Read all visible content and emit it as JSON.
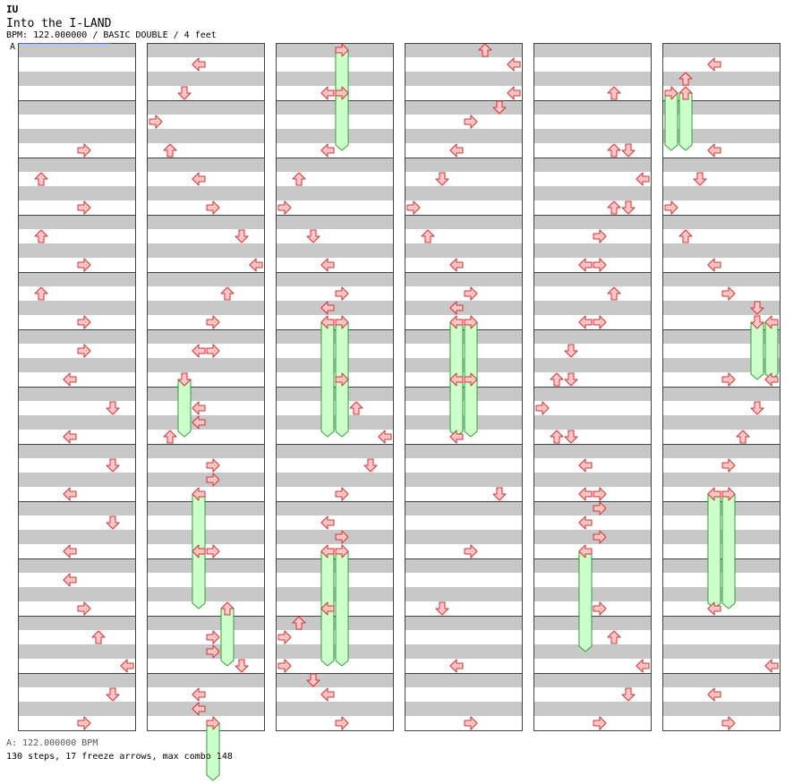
{
  "header": {
    "artist": "IU",
    "title": "Into the I-LAND",
    "meta": "BPM: 122.000000 / BASIC DOUBLE / 4 feet",
    "marker": "A"
  },
  "footer": {
    "bpm": "A: 122.000000 BPM",
    "stats": "130 steps, 17 freeze arrows, max combo 148"
  },
  "colors": {
    "arrow_fill": "#ffc8c8",
    "arrow_stroke": "#d03030",
    "freeze_fill": "#ccffcc",
    "freeze_stroke": "#30a030",
    "band": "#c8c8c8",
    "border": "#444444",
    "bpm_marker": "#4060ff"
  },
  "chart_data": {
    "type": "step-chart",
    "columns": 6,
    "measures_per_column": 12,
    "rows_per_measure": 4,
    "lanes_per_column": 8,
    "freeze_count": 17,
    "notes": [
      {
        "c": 0,
        "r": 7,
        "l": 4
      },
      {
        "c": 0,
        "r": 9,
        "l": 1
      },
      {
        "c": 0,
        "r": 11,
        "l": 4
      },
      {
        "c": 0,
        "r": 13,
        "l": 1
      },
      {
        "c": 0,
        "r": 15,
        "l": 4
      },
      {
        "c": 0,
        "r": 17,
        "l": 1
      },
      {
        "c": 0,
        "r": 19,
        "l": 4
      },
      {
        "c": 0,
        "r": 21,
        "l": 4
      },
      {
        "c": 0,
        "r": 23,
        "l": 3
      },
      {
        "c": 0,
        "r": 25,
        "l": 6
      },
      {
        "c": 0,
        "r": 27,
        "l": 3
      },
      {
        "c": 0,
        "r": 29,
        "l": 6
      },
      {
        "c": 0,
        "r": 31,
        "l": 3
      },
      {
        "c": 0,
        "r": 33,
        "l": 6
      },
      {
        "c": 0,
        "r": 35,
        "l": 3
      },
      {
        "c": 0,
        "r": 37,
        "l": 3
      },
      {
        "c": 0,
        "r": 39,
        "l": 4
      },
      {
        "c": 0,
        "r": 41,
        "l": 5
      },
      {
        "c": 0,
        "r": 43,
        "l": 7
      },
      {
        "c": 0,
        "r": 45,
        "l": 6
      },
      {
        "c": 0,
        "r": 47,
        "l": 4
      },
      {
        "c": 1,
        "r": 1,
        "l": 3
      },
      {
        "c": 1,
        "r": 3,
        "l": 2
      },
      {
        "c": 1,
        "r": 5,
        "l": 0
      },
      {
        "c": 1,
        "r": 7,
        "l": 1
      },
      {
        "c": 1,
        "r": 9,
        "l": 3
      },
      {
        "c": 1,
        "r": 11,
        "l": 4
      },
      {
        "c": 1,
        "r": 13,
        "l": 6
      },
      {
        "c": 1,
        "r": 15,
        "l": 7
      },
      {
        "c": 1,
        "r": 17,
        "l": 5
      },
      {
        "c": 1,
        "r": 19,
        "l": 4
      },
      {
        "c": 1,
        "r": 21,
        "l": 3
      },
      {
        "c": 1,
        "r": 21,
        "l": 4
      },
      {
        "c": 1,
        "r": 23,
        "l": 2,
        "f": 1
      },
      {
        "c": 1,
        "r": 25,
        "l": 3
      },
      {
        "c": 1,
        "r": 26,
        "l": 3
      },
      {
        "c": 1,
        "r": 27,
        "l": 1
      },
      {
        "c": 1,
        "r": 29,
        "l": 4
      },
      {
        "c": 1,
        "r": 30,
        "l": 4
      },
      {
        "c": 1,
        "r": 31,
        "l": 3,
        "f": 2
      },
      {
        "c": 1,
        "r": 35,
        "l": 3
      },
      {
        "c": 1,
        "r": 35,
        "l": 4
      },
      {
        "c": 1,
        "r": 39,
        "l": 5,
        "f": 1
      },
      {
        "c": 1,
        "r": 41,
        "l": 4
      },
      {
        "c": 1,
        "r": 42,
        "l": 4
      },
      {
        "c": 1,
        "r": 43,
        "l": 6
      },
      {
        "c": 1,
        "r": 45,
        "l": 3
      },
      {
        "c": 1,
        "r": 46,
        "l": 3
      },
      {
        "c": 1,
        "r": 47,
        "l": 4,
        "f": 1
      },
      {
        "c": 2,
        "r": 0,
        "l": 4,
        "f": 1.75
      },
      {
        "c": 2,
        "r": 3,
        "l": 3
      },
      {
        "c": 2,
        "r": 3,
        "l": 4
      },
      {
        "c": 2,
        "r": 7,
        "l": 3
      },
      {
        "c": 2,
        "r": 9,
        "l": 1
      },
      {
        "c": 2,
        "r": 11,
        "l": 0
      },
      {
        "c": 2,
        "r": 13,
        "l": 2
      },
      {
        "c": 2,
        "r": 15,
        "l": 3
      },
      {
        "c": 2,
        "r": 17,
        "l": 4
      },
      {
        "c": 2,
        "r": 18,
        "l": 3
      },
      {
        "c": 2,
        "r": 19,
        "l": 3,
        "f": 2
      },
      {
        "c": 2,
        "r": 19,
        "l": 4,
        "f": 2
      },
      {
        "c": 2,
        "r": 23,
        "l": 4
      },
      {
        "c": 2,
        "r": 25,
        "l": 5
      },
      {
        "c": 2,
        "r": 27,
        "l": 7
      },
      {
        "c": 2,
        "r": 29,
        "l": 6
      },
      {
        "c": 2,
        "r": 31,
        "l": 4
      },
      {
        "c": 2,
        "r": 33,
        "l": 3
      },
      {
        "c": 2,
        "r": 34,
        "l": 4
      },
      {
        "c": 2,
        "r": 35,
        "l": 3,
        "f": 2
      },
      {
        "c": 2,
        "r": 35,
        "l": 4,
        "f": 2
      },
      {
        "c": 2,
        "r": 39,
        "l": 3
      },
      {
        "c": 2,
        "r": 40,
        "l": 1
      },
      {
        "c": 2,
        "r": 41,
        "l": 0
      },
      {
        "c": 2,
        "r": 43,
        "l": 0
      },
      {
        "c": 2,
        "r": 44,
        "l": 2
      },
      {
        "c": 2,
        "r": 45,
        "l": 3
      },
      {
        "c": 2,
        "r": 47,
        "l": 4
      },
      {
        "c": 3,
        "r": 0,
        "l": 5
      },
      {
        "c": 3,
        "r": 1,
        "l": 7
      },
      {
        "c": 3,
        "r": 3,
        "l": 7
      },
      {
        "c": 3,
        "r": 4,
        "l": 6
      },
      {
        "c": 3,
        "r": 5,
        "l": 4
      },
      {
        "c": 3,
        "r": 7,
        "l": 3
      },
      {
        "c": 3,
        "r": 9,
        "l": 2
      },
      {
        "c": 3,
        "r": 11,
        "l": 0
      },
      {
        "c": 3,
        "r": 13,
        "l": 1
      },
      {
        "c": 3,
        "r": 15,
        "l": 3
      },
      {
        "c": 3,
        "r": 17,
        "l": 4
      },
      {
        "c": 3,
        "r": 18,
        "l": 3
      },
      {
        "c": 3,
        "r": 19,
        "l": 3,
        "f": 2
      },
      {
        "c": 3,
        "r": 19,
        "l": 4,
        "f": 2
      },
      {
        "c": 3,
        "r": 23,
        "l": 3
      },
      {
        "c": 3,
        "r": 23,
        "l": 4
      },
      {
        "c": 3,
        "r": 27,
        "l": 3
      },
      {
        "c": 3,
        "r": 31,
        "l": 6
      },
      {
        "c": 3,
        "r": 35,
        "l": 4
      },
      {
        "c": 3,
        "r": 39,
        "l": 2
      },
      {
        "c": 3,
        "r": 43,
        "l": 3
      },
      {
        "c": 3,
        "r": 47,
        "l": 4
      },
      {
        "c": 4,
        "r": 3,
        "l": 5
      },
      {
        "c": 4,
        "r": 7,
        "l": 5
      },
      {
        "c": 4,
        "r": 7,
        "l": 6
      },
      {
        "c": 4,
        "r": 9,
        "l": 7
      },
      {
        "c": 4,
        "r": 11,
        "l": 5
      },
      {
        "c": 4,
        "r": 11,
        "l": 6
      },
      {
        "c": 4,
        "r": 13,
        "l": 4
      },
      {
        "c": 4,
        "r": 15,
        "l": 3
      },
      {
        "c": 4,
        "r": 15,
        "l": 4
      },
      {
        "c": 4,
        "r": 17,
        "l": 5
      },
      {
        "c": 4,
        "r": 19,
        "l": 3
      },
      {
        "c": 4,
        "r": 19,
        "l": 4
      },
      {
        "c": 4,
        "r": 21,
        "l": 2
      },
      {
        "c": 4,
        "r": 23,
        "l": 1
      },
      {
        "c": 4,
        "r": 23,
        "l": 2
      },
      {
        "c": 4,
        "r": 25,
        "l": 0
      },
      {
        "c": 4,
        "r": 27,
        "l": 1
      },
      {
        "c": 4,
        "r": 27,
        "l": 2
      },
      {
        "c": 4,
        "r": 29,
        "l": 3
      },
      {
        "c": 4,
        "r": 31,
        "l": 3
      },
      {
        "c": 4,
        "r": 31,
        "l": 4
      },
      {
        "c": 4,
        "r": 32,
        "l": 4
      },
      {
        "c": 4,
        "r": 33,
        "l": 3
      },
      {
        "c": 4,
        "r": 34,
        "l": 4
      },
      {
        "c": 4,
        "r": 35,
        "l": 3,
        "f": 1.75
      },
      {
        "c": 4,
        "r": 39,
        "l": 4
      },
      {
        "c": 4,
        "r": 41,
        "l": 5
      },
      {
        "c": 4,
        "r": 43,
        "l": 7
      },
      {
        "c": 4,
        "r": 45,
        "l": 6
      },
      {
        "c": 4,
        "r": 47,
        "l": 4
      },
      {
        "c": 5,
        "r": 1,
        "l": 3
      },
      {
        "c": 5,
        "r": 2,
        "l": 1
      },
      {
        "c": 5,
        "r": 3,
        "l": 0,
        "f": 1
      },
      {
        "c": 5,
        "r": 3,
        "l": 1,
        "f": 1
      },
      {
        "c": 5,
        "r": 7,
        "l": 3
      },
      {
        "c": 5,
        "r": 9,
        "l": 2
      },
      {
        "c": 5,
        "r": 11,
        "l": 0
      },
      {
        "c": 5,
        "r": 13,
        "l": 1
      },
      {
        "c": 5,
        "r": 15,
        "l": 3
      },
      {
        "c": 5,
        "r": 17,
        "l": 4
      },
      {
        "c": 5,
        "r": 18,
        "l": 6
      },
      {
        "c": 5,
        "r": 19,
        "l": 6,
        "f": 1
      },
      {
        "c": 5,
        "r": 19,
        "l": 7,
        "f": 1
      },
      {
        "c": 5,
        "r": 23,
        "l": 4
      },
      {
        "c": 5,
        "r": 23,
        "l": 7
      },
      {
        "c": 5,
        "r": 25,
        "l": 6
      },
      {
        "c": 5,
        "r": 27,
        "l": 5
      },
      {
        "c": 5,
        "r": 29,
        "l": 4
      },
      {
        "c": 5,
        "r": 31,
        "l": 3,
        "f": 2
      },
      {
        "c": 5,
        "r": 31,
        "l": 4,
        "f": 2
      },
      {
        "c": 5,
        "r": 39,
        "l": 3
      },
      {
        "c": 5,
        "r": 43,
        "l": 7
      },
      {
        "c": 5,
        "r": 45,
        "l": 3
      },
      {
        "c": 5,
        "r": 47,
        "l": 4
      }
    ]
  }
}
